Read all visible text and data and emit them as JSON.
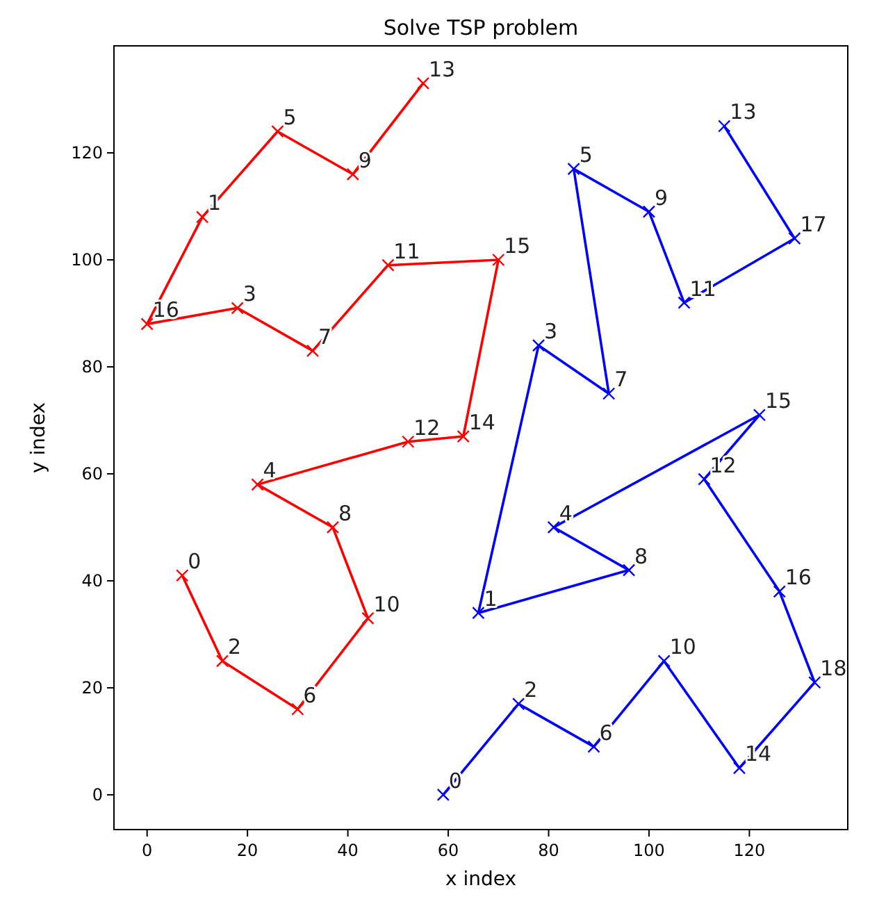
{
  "chart_data": {
    "type": "line",
    "title": "Solve TSP problem",
    "xlabel": "x index",
    "ylabel": "y index",
    "marker": "cross",
    "line_style": "solid",
    "grid": false,
    "xlim": [
      -6.6,
      139.6
    ],
    "ylim": [
      -6.5,
      140
    ],
    "xticks": [
      0,
      20,
      40,
      60,
      80,
      100,
      120
    ],
    "yticks": [
      0,
      20,
      40,
      60,
      80,
      100,
      120
    ],
    "series": [
      {
        "color": "#ff0000",
        "x": [
          7,
          15,
          30,
          44,
          37,
          22,
          52,
          63,
          70,
          48,
          33,
          18,
          0,
          11,
          26,
          41,
          55
        ],
        "values": [
          41,
          25,
          16,
          33,
          50,
          58,
          66,
          67,
          100,
          99,
          83,
          91,
          88,
          108,
          124,
          116,
          133
        ]
      },
      {
        "color": "#0000ff",
        "x": [
          59,
          74,
          89,
          103,
          118,
          133,
          126,
          111,
          122,
          81,
          96,
          66,
          78,
          92,
          85,
          100,
          107,
          129,
          115
        ],
        "values": [
          0,
          17,
          9,
          25,
          5,
          21,
          38,
          59,
          71,
          50,
          42,
          34,
          84,
          75,
          117,
          109,
          92,
          104,
          125
        ]
      }
    ],
    "annotations": [
      {
        "text": "0",
        "x": 7,
        "y": 41
      },
      {
        "text": "2",
        "x": 15,
        "y": 25
      },
      {
        "text": "6",
        "x": 30,
        "y": 16
      },
      {
        "text": "10",
        "x": 44,
        "y": 33
      },
      {
        "text": "8",
        "x": 37,
        "y": 50
      },
      {
        "text": "4",
        "x": 22,
        "y": 58
      },
      {
        "text": "12",
        "x": 52,
        "y": 66
      },
      {
        "text": "14",
        "x": 63,
        "y": 67
      },
      {
        "text": "15",
        "x": 70,
        "y": 100
      },
      {
        "text": "11",
        "x": 48,
        "y": 99
      },
      {
        "text": "7",
        "x": 33,
        "y": 83
      },
      {
        "text": "3",
        "x": 18,
        "y": 91
      },
      {
        "text": "16",
        "x": 0,
        "y": 88
      },
      {
        "text": "1",
        "x": 11,
        "y": 108
      },
      {
        "text": "5",
        "x": 26,
        "y": 124
      },
      {
        "text": "9",
        "x": 41,
        "y": 116
      },
      {
        "text": "13",
        "x": 55,
        "y": 133
      },
      {
        "text": "0",
        "x": 59,
        "y": 0
      },
      {
        "text": "2",
        "x": 74,
        "y": 17
      },
      {
        "text": "6",
        "x": 89,
        "y": 9
      },
      {
        "text": "10",
        "x": 103,
        "y": 25
      },
      {
        "text": "14",
        "x": 118,
        "y": 5
      },
      {
        "text": "18",
        "x": 133,
        "y": 21
      },
      {
        "text": "16",
        "x": 126,
        "y": 38
      },
      {
        "text": "12",
        "x": 111,
        "y": 59
      },
      {
        "text": "15",
        "x": 122,
        "y": 71
      },
      {
        "text": "4",
        "x": 81,
        "y": 50
      },
      {
        "text": "8",
        "x": 96,
        "y": 42
      },
      {
        "text": "1",
        "x": 66,
        "y": 34
      },
      {
        "text": "3",
        "x": 78,
        "y": 84
      },
      {
        "text": "7",
        "x": 92,
        "y": 75
      },
      {
        "text": "5",
        "x": 85,
        "y": 117
      },
      {
        "text": "9",
        "x": 100,
        "y": 109
      },
      {
        "text": "11",
        "x": 107,
        "y": 92
      },
      {
        "text": "17",
        "x": 129,
        "y": 104
      },
      {
        "text": "13",
        "x": 115,
        "y": 125
      }
    ]
  }
}
